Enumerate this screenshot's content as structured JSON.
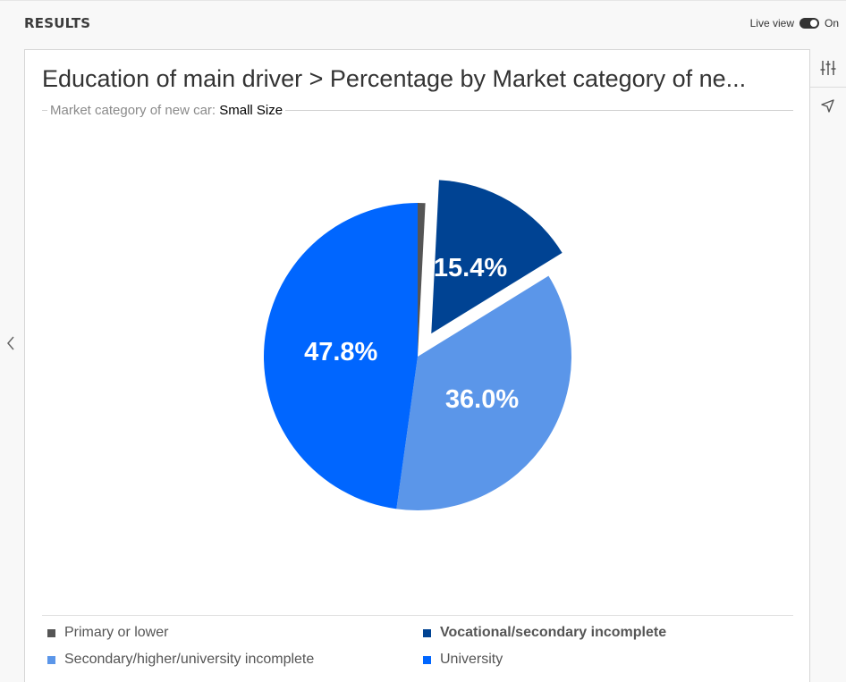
{
  "header": {
    "title": "RESULTS",
    "live_view_label": "Live view",
    "live_view_state": "On"
  },
  "chart": {
    "title": "Education of main driver > Percentage by Market category of ne...",
    "filter_label": "Market category of new car:",
    "filter_value": "Small Size"
  },
  "side_panel": {
    "icons": [
      "sliders-icon",
      "cursor-icon"
    ]
  },
  "chart_data": {
    "type": "pie",
    "title": "Education of main driver > Percentage by Market category of ne...",
    "categories": [
      "Primary or lower",
      "Vocational/secondary incomplete",
      "Secondary/higher/university incomplete",
      "University"
    ],
    "values": [
      0.8,
      15.4,
      36.0,
      47.8
    ],
    "data_labels": [
      "",
      "15.4%",
      "36.0%",
      "47.8%"
    ],
    "colors": [
      "#555555",
      "#004393",
      "#5b96e9",
      "#0066ff"
    ],
    "exploded": "Vocational/secondary incomplete",
    "legend_position": "bottom"
  }
}
